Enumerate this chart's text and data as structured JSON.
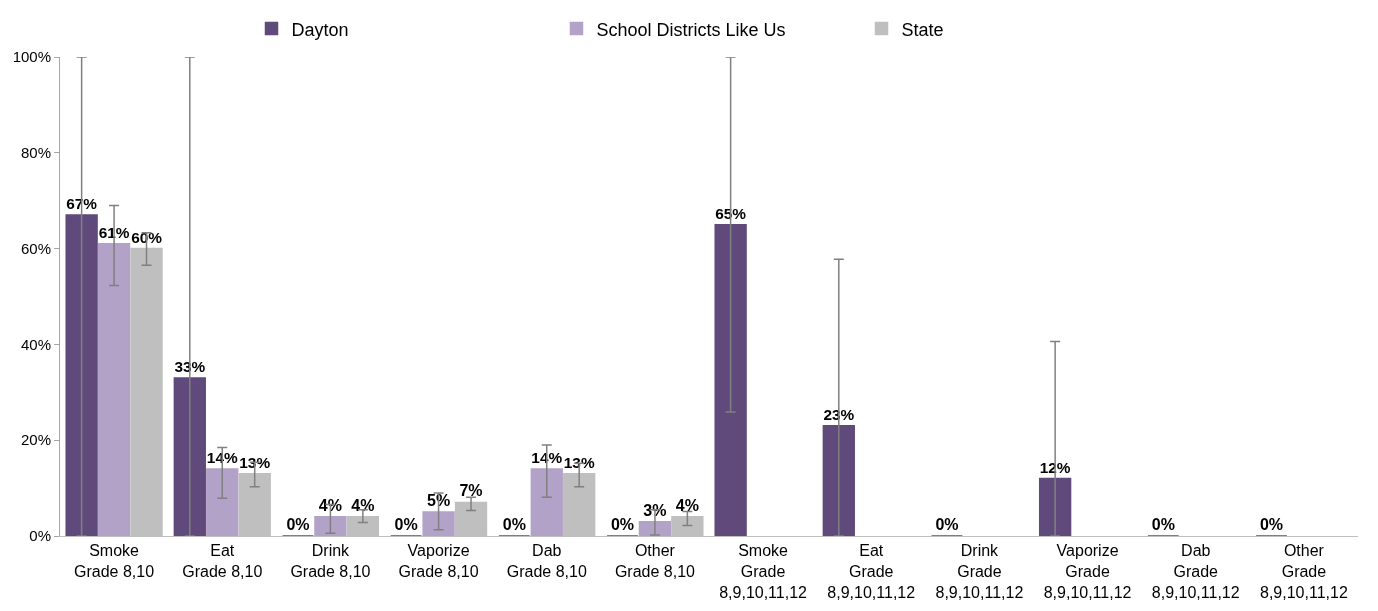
{
  "chart_data": {
    "type": "bar",
    "categories": [
      "Smoke\nGrade 8,10",
      "Eat\nGrade 8,10",
      "Drink\nGrade 8,10",
      "Vaporize\nGrade 8,10",
      "Dab\nGrade 8,10",
      "Other\nGrade 8,10",
      "Smoke\nGrade\n8,9,10,11,12",
      "Eat\nGrade\n8,9,10,11,12",
      "Drink\nGrade\n8,9,10,11,12",
      "Vaporize\nGrade\n8,9,10,11,12",
      "Dab\nGrade\n8,9,10,11,12",
      "Other\nGrade\n8,9,10,11,12"
    ],
    "series": [
      {
        "name": "Dayton",
        "color": "#604a7b",
        "values": [
          67,
          33,
          0,
          0,
          0,
          0,
          65,
          23,
          0,
          12,
          0,
          0
        ],
        "value_labels": [
          "67%",
          "33%",
          "0%",
          "0%",
          "0%",
          "0%",
          "65%",
          "23%",
          "0%",
          "12%",
          "0%",
          "0%"
        ],
        "errors": [
          [
            0,
            100
          ],
          [
            0,
            100
          ],
          null,
          null,
          null,
          null,
          [
            25.9,
            100
          ],
          [
            0,
            57.8
          ],
          null,
          [
            0,
            40.6
          ],
          null,
          null
        ]
      },
      {
        "name": "School Districts Like Us",
        "color": "#b3a2c7",
        "values": [
          61,
          14,
          4,
          5,
          14,
          3,
          null,
          null,
          null,
          null,
          null,
          null
        ],
        "value_labels": [
          "61%",
          "14%",
          "4%",
          "5%",
          "14%",
          "3%",
          null,
          null,
          null,
          null,
          null,
          null
        ],
        "errors": [
          [
            52.3,
            69.0
          ],
          [
            7.9,
            18.5
          ],
          [
            0.6,
            6.6
          ],
          [
            1.3,
            9.0
          ],
          [
            8.1,
            19.0
          ],
          [
            0.2,
            5.5
          ],
          null,
          null,
          null,
          null,
          null,
          null
        ]
      },
      {
        "name": "State",
        "color": "#bfbfbf",
        "values": [
          60,
          13,
          4,
          7,
          13,
          4,
          null,
          null,
          null,
          null,
          null,
          null
        ],
        "value_labels": [
          "60%",
          "13%",
          "4%",
          "7%",
          "13%",
          "4%",
          null,
          null,
          null,
          null,
          null,
          null
        ],
        "errors": [
          [
            56.5,
            63.3
          ],
          [
            10.3,
            15.4
          ],
          [
            2.8,
            5.5
          ],
          [
            5.3,
            8.1
          ],
          [
            10.3,
            15.2
          ],
          [
            2.2,
            5.1
          ],
          null,
          null,
          null,
          null,
          null,
          null
        ]
      }
    ],
    "ylim": [
      0,
      100
    ],
    "yticks": [
      {
        "value": 0,
        "label": "0%"
      },
      {
        "value": 20,
        "label": "20%"
      },
      {
        "value": 40,
        "label": "40%"
      },
      {
        "value": 60,
        "label": "60%"
      },
      {
        "value": 80,
        "label": "80%"
      },
      {
        "value": 100,
        "label": "100%"
      }
    ],
    "legend": "top"
  }
}
